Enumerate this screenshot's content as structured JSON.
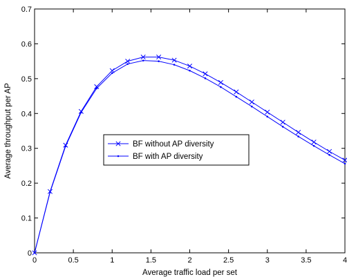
{
  "chart_data": {
    "type": "line",
    "xlabel": "Average traffic load per set",
    "ylabel": "Average throughput per AP",
    "xlim": [
      0,
      4
    ],
    "ylim": [
      0,
      0.7
    ],
    "xticks": [
      0,
      0.5,
      1,
      1.5,
      2,
      2.5,
      3,
      3.5,
      4
    ],
    "yticks": [
      0,
      0.1,
      0.2,
      0.3,
      0.4,
      0.5,
      0.6,
      0.7
    ],
    "xtick_labels": [
      "0",
      "0.5",
      "1",
      "1.5",
      "2",
      "2.5",
      "3",
      "3.5",
      "4"
    ],
    "ytick_labels": [
      "0",
      "0.1",
      "0.2",
      "0.3",
      "0.4",
      "0.5",
      "0.6",
      "0.7"
    ],
    "grid": false,
    "legend_position": "center-left",
    "x": [
      0,
      0.2,
      0.4,
      0.6,
      0.8,
      1.0,
      1.2,
      1.4,
      1.6,
      1.8,
      2.0,
      2.2,
      2.4,
      2.6,
      2.8,
      3.0,
      3.2,
      3.4,
      3.6,
      3.8,
      4.0
    ],
    "series": [
      {
        "name": "BF without AP diversity",
        "marker": "x",
        "color": "#0000ff",
        "values": [
          0.0,
          0.176,
          0.309,
          0.406,
          0.477,
          0.523,
          0.55,
          0.562,
          0.562,
          0.553,
          0.536,
          0.514,
          0.489,
          0.462,
          0.433,
          0.404,
          0.375,
          0.346,
          0.318,
          0.291,
          0.266
        ]
      },
      {
        "name": "BF with AP diversity",
        "marker": "dot",
        "color": "#0000ff",
        "values": [
          0.0,
          0.174,
          0.306,
          0.403,
          0.472,
          0.516,
          0.542,
          0.552,
          0.55,
          0.54,
          0.523,
          0.501,
          0.476,
          0.448,
          0.42,
          0.391,
          0.362,
          0.334,
          0.307,
          0.281,
          0.256
        ]
      }
    ]
  }
}
